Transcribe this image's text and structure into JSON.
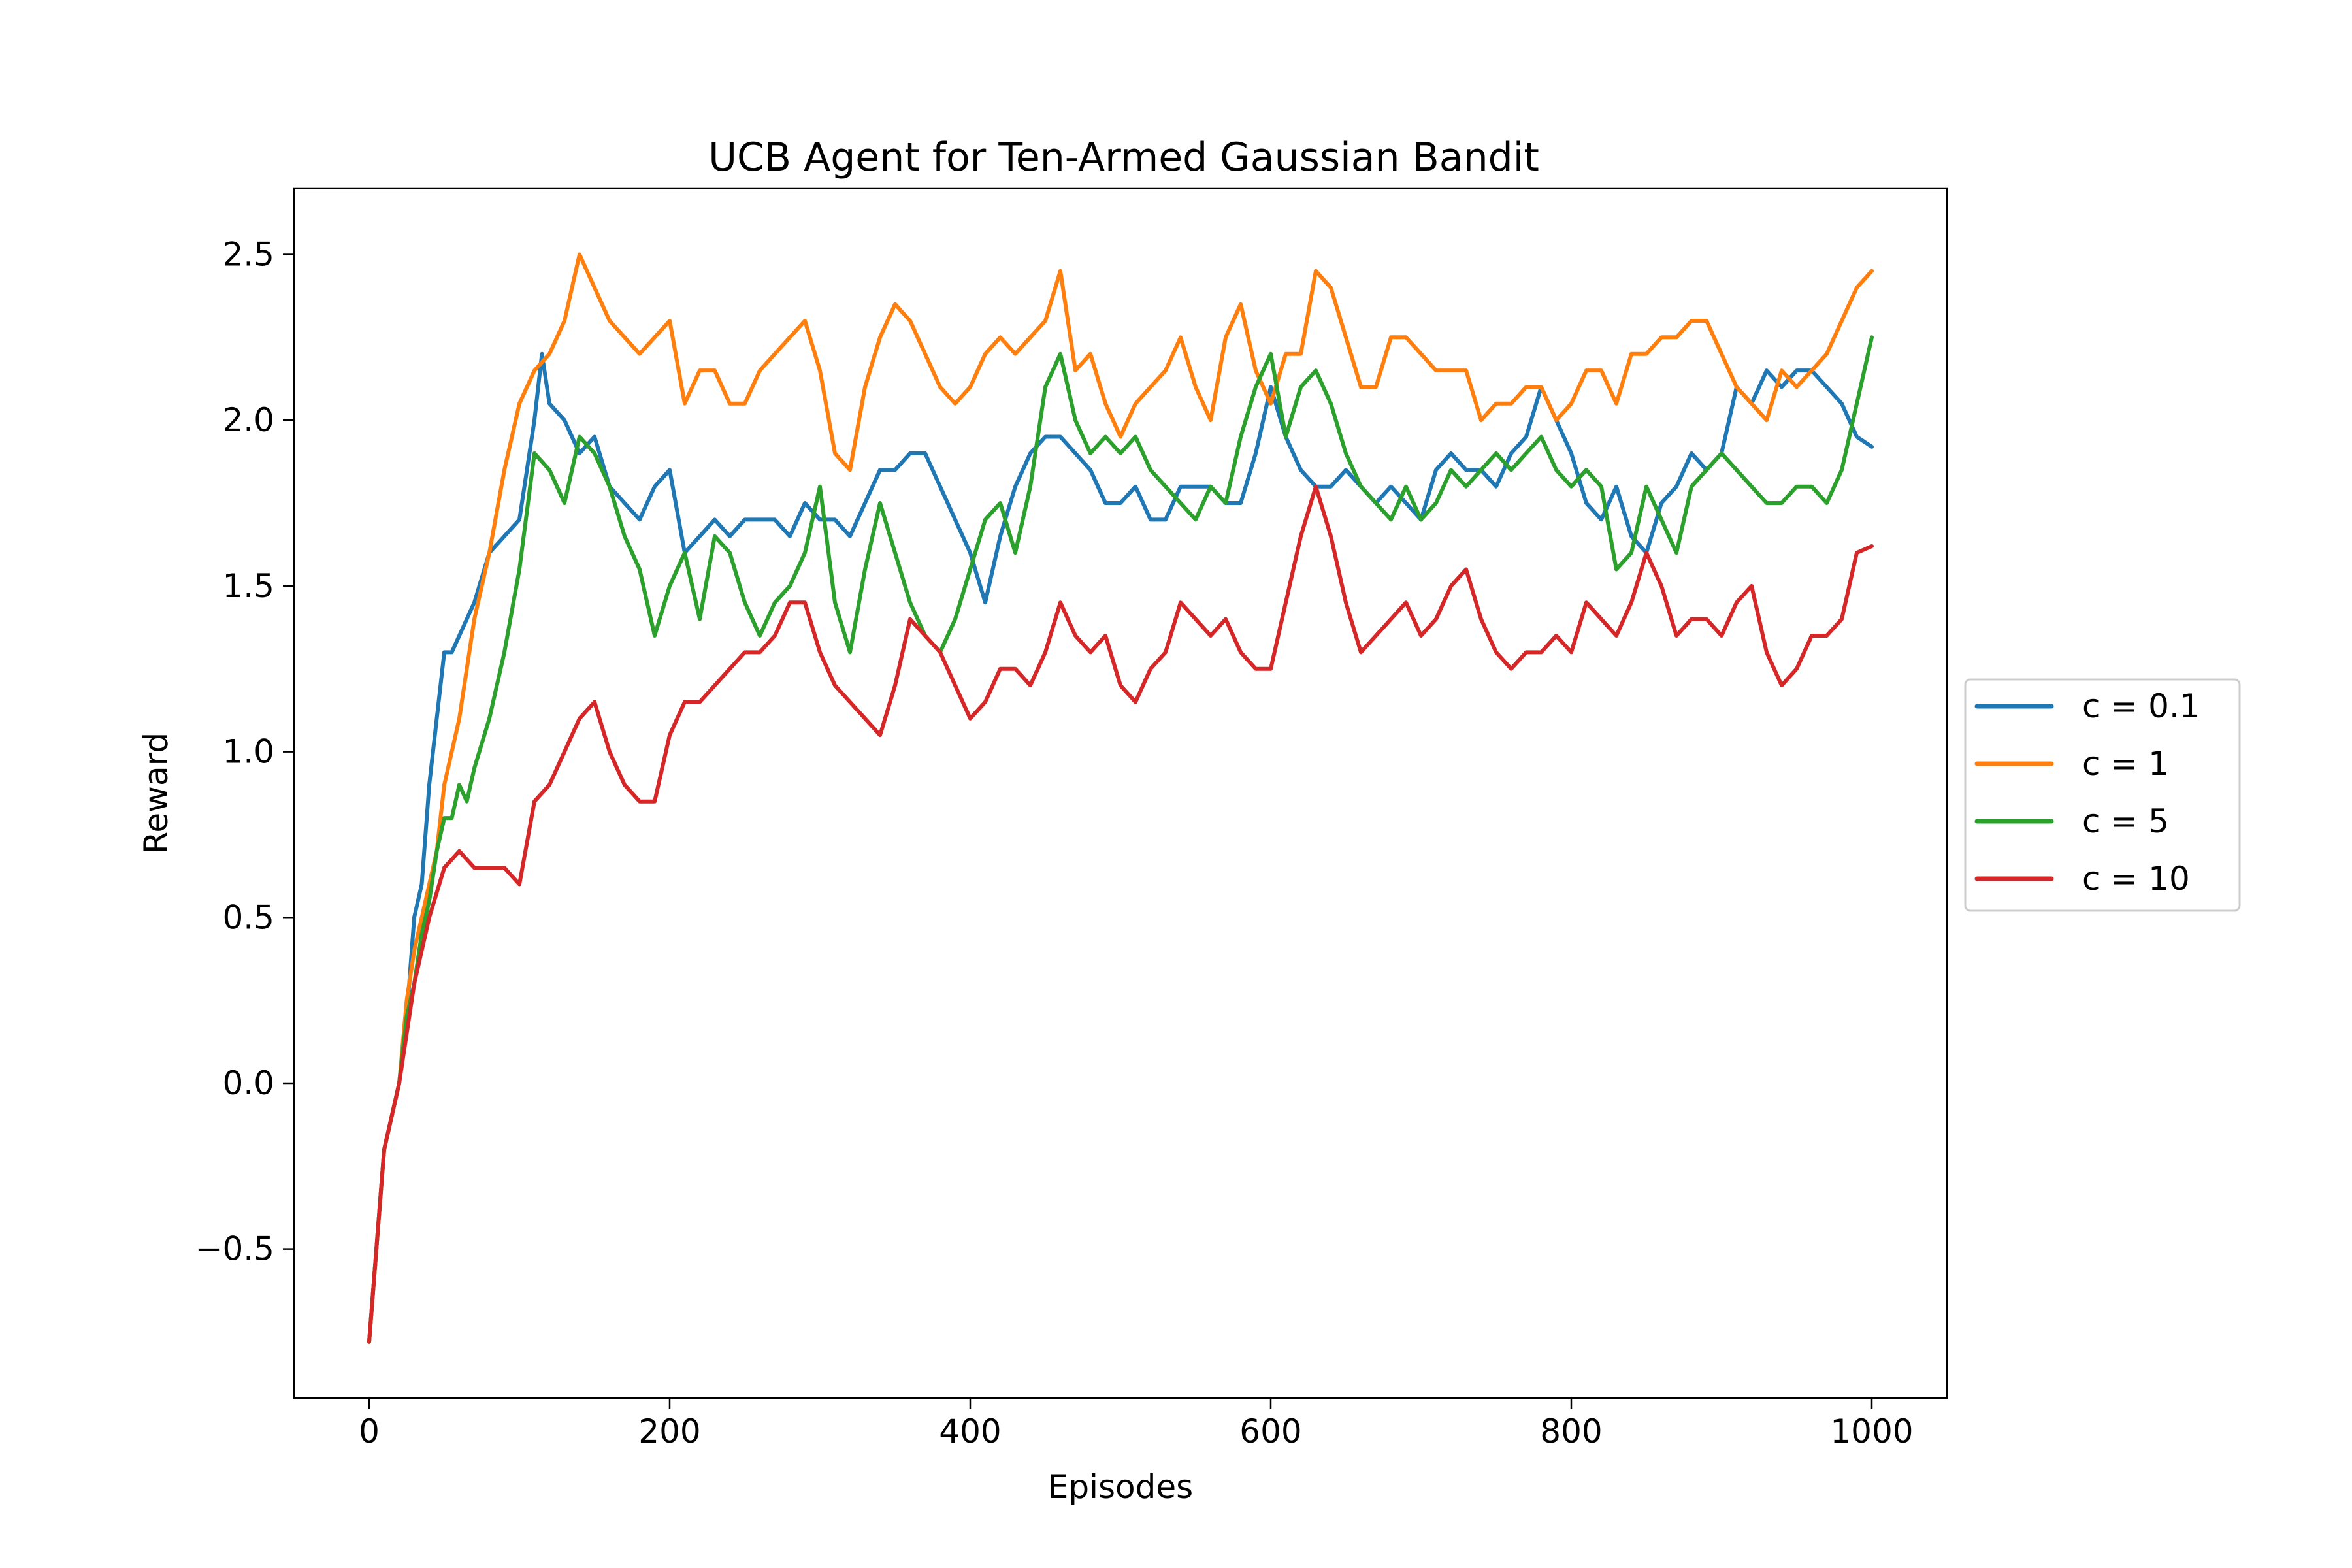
{
  "chart_data": {
    "type": "line",
    "title": "UCB Agent for Ten-Armed Gaussian Bandit",
    "xlabel": "Episodes",
    "ylabel": "Reward",
    "xlim": [
      -50,
      1050
    ],
    "ylim": [
      -0.95,
      2.7
    ],
    "xticks": [
      0,
      200,
      400,
      600,
      800,
      1000
    ],
    "yticks": [
      -0.5,
      0.0,
      0.5,
      1.0,
      1.5,
      2.0,
      2.5
    ],
    "xtick_labels": [
      "0",
      "200",
      "400",
      "600",
      "800",
      "1000"
    ],
    "ytick_labels": [
      "−0.5",
      "0.0",
      "0.5",
      "1.0",
      "1.5",
      "2.0",
      "2.5"
    ],
    "grid": false,
    "legend_position": "center-right-outside",
    "series": [
      {
        "name": "c = 0.1",
        "color": "#1f77b4",
        "x": [
          0,
          10,
          20,
          25,
          30,
          35,
          40,
          45,
          50,
          55,
          60,
          70,
          80,
          90,
          100,
          110,
          115,
          120,
          130,
          140,
          150,
          160,
          170,
          180,
          190,
          200,
          210,
          220,
          230,
          240,
          250,
          260,
          270,
          280,
          290,
          300,
          310,
          320,
          330,
          340,
          350,
          360,
          370,
          380,
          390,
          400,
          410,
          420,
          430,
          440,
          450,
          460,
          470,
          480,
          490,
          500,
          510,
          520,
          530,
          540,
          550,
          560,
          570,
          580,
          590,
          600,
          610,
          620,
          630,
          640,
          650,
          660,
          670,
          680,
          690,
          700,
          710,
          720,
          730,
          740,
          750,
          760,
          770,
          780,
          790,
          800,
          810,
          820,
          830,
          840,
          850,
          860,
          870,
          880,
          890,
          900,
          910,
          920,
          930,
          940,
          950,
          960,
          970,
          980,
          990,
          1000
        ],
        "values": [
          -0.78,
          -0.2,
          0.0,
          0.2,
          0.5,
          0.6,
          0.9,
          1.1,
          1.3,
          1.3,
          1.35,
          1.45,
          1.6,
          1.65,
          1.7,
          2.0,
          2.2,
          2.05,
          2.0,
          1.9,
          1.95,
          1.8,
          1.75,
          1.7,
          1.8,
          1.85,
          1.6,
          1.65,
          1.7,
          1.65,
          1.7,
          1.7,
          1.7,
          1.65,
          1.75,
          1.7,
          1.7,
          1.65,
          1.75,
          1.85,
          1.85,
          1.9,
          1.9,
          1.8,
          1.7,
          1.6,
          1.45,
          1.65,
          1.8,
          1.9,
          1.95,
          1.95,
          1.9,
          1.85,
          1.75,
          1.75,
          1.8,
          1.7,
          1.7,
          1.8,
          1.8,
          1.8,
          1.75,
          1.75,
          1.9,
          2.1,
          1.95,
          1.85,
          1.8,
          1.8,
          1.85,
          1.8,
          1.75,
          1.8,
          1.75,
          1.7,
          1.85,
          1.9,
          1.85,
          1.85,
          1.8,
          1.9,
          1.95,
          2.1,
          2.0,
          1.9,
          1.75,
          1.7,
          1.8,
          1.65,
          1.6,
          1.75,
          1.8,
          1.9,
          1.85,
          1.9,
          2.1,
          2.05,
          2.15,
          2.1,
          2.15,
          2.15,
          2.1,
          2.05,
          1.95,
          1.92
        ]
      },
      {
        "name": "c = 1",
        "color": "#ff7f0e",
        "x": [
          0,
          10,
          20,
          25,
          30,
          35,
          40,
          45,
          50,
          60,
          70,
          80,
          90,
          100,
          110,
          120,
          130,
          140,
          150,
          160,
          170,
          180,
          190,
          200,
          210,
          220,
          230,
          240,
          250,
          260,
          270,
          280,
          290,
          300,
          310,
          320,
          330,
          340,
          350,
          360,
          370,
          380,
          390,
          400,
          410,
          420,
          430,
          440,
          450,
          460,
          470,
          480,
          490,
          500,
          510,
          520,
          530,
          540,
          550,
          560,
          570,
          580,
          590,
          600,
          610,
          620,
          630,
          640,
          650,
          660,
          670,
          680,
          690,
          700,
          710,
          720,
          730,
          740,
          750,
          760,
          770,
          780,
          790,
          800,
          810,
          820,
          830,
          840,
          850,
          860,
          870,
          880,
          890,
          900,
          910,
          920,
          930,
          940,
          950,
          960,
          970,
          980,
          990,
          1000
        ],
        "values": [
          -0.78,
          -0.2,
          0.0,
          0.25,
          0.4,
          0.5,
          0.6,
          0.7,
          0.9,
          1.1,
          1.4,
          1.6,
          1.85,
          2.05,
          2.15,
          2.2,
          2.3,
          2.5,
          2.4,
          2.3,
          2.25,
          2.2,
          2.25,
          2.3,
          2.05,
          2.15,
          2.15,
          2.05,
          2.05,
          2.15,
          2.2,
          2.25,
          2.3,
          2.15,
          1.9,
          1.85,
          2.1,
          2.25,
          2.35,
          2.3,
          2.2,
          2.1,
          2.05,
          2.1,
          2.2,
          2.25,
          2.2,
          2.25,
          2.3,
          2.45,
          2.15,
          2.2,
          2.05,
          1.95,
          2.05,
          2.1,
          2.15,
          2.25,
          2.1,
          2.0,
          2.25,
          2.35,
          2.15,
          2.05,
          2.2,
          2.2,
          2.45,
          2.4,
          2.25,
          2.1,
          2.1,
          2.25,
          2.25,
          2.2,
          2.15,
          2.15,
          2.15,
          2.0,
          2.05,
          2.05,
          2.1,
          2.1,
          2.0,
          2.05,
          2.15,
          2.15,
          2.05,
          2.2,
          2.2,
          2.25,
          2.25,
          2.3,
          2.3,
          2.2,
          2.1,
          2.05,
          2.0,
          2.15,
          2.1,
          2.15,
          2.2,
          2.3,
          2.4,
          2.45
        ]
      },
      {
        "name": "c = 5",
        "color": "#2ca02c",
        "x": [
          0,
          10,
          20,
          25,
          30,
          35,
          40,
          45,
          50,
          55,
          60,
          65,
          70,
          80,
          90,
          100,
          110,
          120,
          130,
          140,
          150,
          160,
          170,
          180,
          190,
          200,
          210,
          220,
          230,
          240,
          250,
          260,
          270,
          280,
          290,
          300,
          310,
          320,
          330,
          340,
          350,
          360,
          370,
          380,
          390,
          400,
          410,
          420,
          430,
          440,
          450,
          460,
          470,
          480,
          490,
          500,
          510,
          520,
          530,
          540,
          550,
          560,
          570,
          580,
          590,
          600,
          610,
          620,
          630,
          640,
          650,
          660,
          670,
          680,
          690,
          700,
          710,
          720,
          730,
          740,
          750,
          760,
          770,
          780,
          790,
          800,
          810,
          820,
          830,
          840,
          850,
          860,
          870,
          880,
          890,
          900,
          910,
          920,
          930,
          940,
          950,
          960,
          970,
          980,
          990,
          1000
        ],
        "values": [
          -0.78,
          -0.2,
          0.0,
          0.2,
          0.3,
          0.45,
          0.55,
          0.7,
          0.8,
          0.8,
          0.9,
          0.85,
          0.95,
          1.1,
          1.3,
          1.55,
          1.9,
          1.85,
          1.75,
          1.95,
          1.9,
          1.8,
          1.65,
          1.55,
          1.35,
          1.5,
          1.6,
          1.4,
          1.65,
          1.6,
          1.45,
          1.35,
          1.45,
          1.5,
          1.6,
          1.8,
          1.45,
          1.3,
          1.55,
          1.75,
          1.6,
          1.45,
          1.35,
          1.3,
          1.4,
          1.55,
          1.7,
          1.75,
          1.6,
          1.8,
          2.1,
          2.2,
          2.0,
          1.9,
          1.95,
          1.9,
          1.95,
          1.85,
          1.8,
          1.75,
          1.7,
          1.8,
          1.75,
          1.95,
          2.1,
          2.2,
          1.95,
          2.1,
          2.15,
          2.05,
          1.9,
          1.8,
          1.75,
          1.7,
          1.8,
          1.7,
          1.75,
          1.85,
          1.8,
          1.85,
          1.9,
          1.85,
          1.9,
          1.95,
          1.85,
          1.8,
          1.85,
          1.8,
          1.55,
          1.6,
          1.8,
          1.7,
          1.6,
          1.8,
          1.85,
          1.9,
          1.85,
          1.8,
          1.75,
          1.75,
          1.8,
          1.8,
          1.75,
          1.85,
          2.05,
          2.25
        ]
      },
      {
        "name": "c = 10",
        "color": "#d62728",
        "x": [
          0,
          10,
          20,
          30,
          40,
          50,
          60,
          70,
          80,
          90,
          100,
          110,
          120,
          130,
          140,
          150,
          160,
          170,
          180,
          190,
          200,
          210,
          220,
          230,
          240,
          250,
          260,
          270,
          280,
          290,
          300,
          310,
          320,
          330,
          340,
          350,
          360,
          370,
          380,
          390,
          400,
          410,
          420,
          430,
          440,
          450,
          460,
          470,
          480,
          490,
          500,
          510,
          520,
          530,
          540,
          550,
          560,
          570,
          580,
          590,
          600,
          610,
          620,
          630,
          640,
          650,
          660,
          670,
          680,
          690,
          700,
          710,
          720,
          730,
          740,
          750,
          760,
          770,
          780,
          790,
          800,
          810,
          820,
          830,
          840,
          850,
          860,
          870,
          880,
          890,
          900,
          910,
          920,
          930,
          940,
          950,
          960,
          970,
          980,
          990,
          1000
        ],
        "values": [
          -0.78,
          -0.2,
          0.0,
          0.3,
          0.5,
          0.65,
          0.7,
          0.65,
          0.65,
          0.65,
          0.6,
          0.85,
          0.9,
          1.0,
          1.1,
          1.15,
          1.0,
          0.9,
          0.85,
          0.85,
          1.05,
          1.15,
          1.15,
          1.2,
          1.25,
          1.3,
          1.3,
          1.35,
          1.45,
          1.45,
          1.3,
          1.2,
          1.15,
          1.1,
          1.05,
          1.2,
          1.4,
          1.35,
          1.3,
          1.2,
          1.1,
          1.15,
          1.25,
          1.25,
          1.2,
          1.3,
          1.45,
          1.35,
          1.3,
          1.35,
          1.2,
          1.15,
          1.25,
          1.3,
          1.45,
          1.4,
          1.35,
          1.4,
          1.3,
          1.25,
          1.25,
          1.45,
          1.65,
          1.8,
          1.65,
          1.45,
          1.3,
          1.35,
          1.4,
          1.45,
          1.35,
          1.4,
          1.5,
          1.55,
          1.4,
          1.3,
          1.25,
          1.3,
          1.3,
          1.35,
          1.3,
          1.45,
          1.4,
          1.35,
          1.45,
          1.6,
          1.5,
          1.35,
          1.4,
          1.4,
          1.35,
          1.45,
          1.5,
          1.3,
          1.2,
          1.25,
          1.35,
          1.35,
          1.4,
          1.6,
          1.62
        ]
      }
    ]
  }
}
